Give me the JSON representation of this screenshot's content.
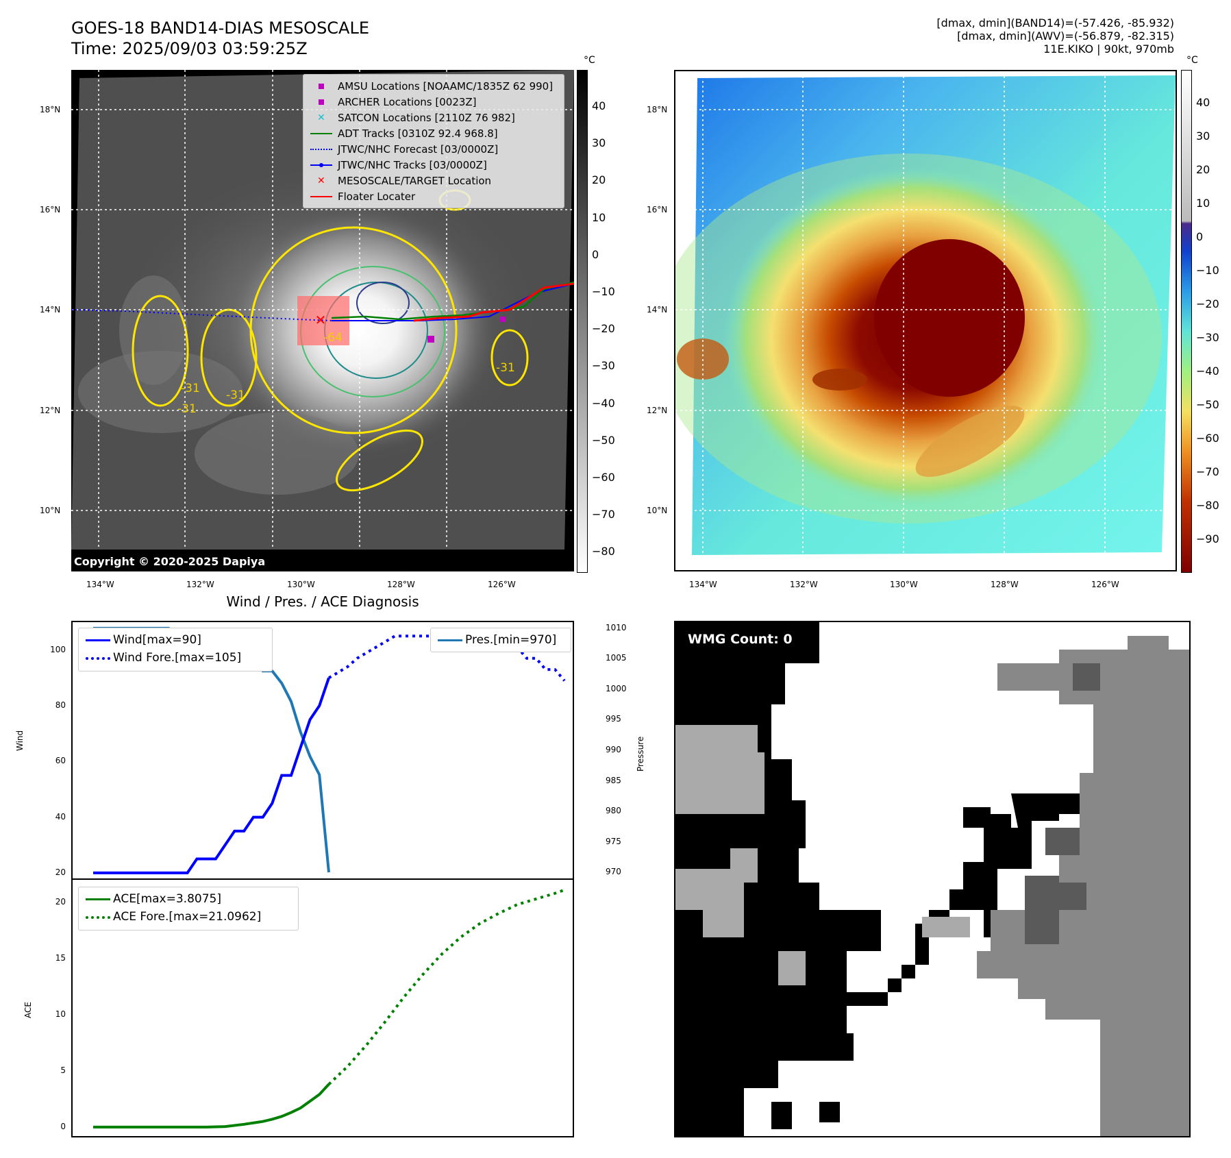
{
  "header": {
    "title_line1": "GOES-18 BAND14-DIAS MESOSCALE",
    "title_line2": "Time: 2025/09/03 03:59:25Z",
    "info_line1": "[dmax, dmin](BAND14)=(-57.426, -85.932)",
    "info_line2": "[dmax, dmin](AWV)=(-56.879, -82.315)",
    "info_line3": "11E.KIKO | 90kt, 970mb"
  },
  "map_axes": {
    "lon_labels": [
      "134°W",
      "132°W",
      "130°W",
      "128°W",
      "126°W"
    ],
    "lat_labels": [
      "18°N",
      "16°N",
      "14°N",
      "12°N",
      "10°N"
    ]
  },
  "ir_panel": {
    "legend": [
      {
        "label": "AMSU Locations [NOAAMC/1835Z 62 990]",
        "color": "#c000c0",
        "marker": "square"
      },
      {
        "label": "ARCHER Locations [0023Z]",
        "color": "#c000c0",
        "marker": "square"
      },
      {
        "label": "SATCON Locations [2110Z 76 982]",
        "color": "#17becf",
        "marker": "x"
      },
      {
        "label": "ADT Tracks [0310Z 92.4 968.8]",
        "color": "#008000",
        "marker": "line"
      },
      {
        "label": "JTWC/NHC Forecast [03/0000Z]",
        "color": "#0000ff",
        "marker": "dotted"
      },
      {
        "label": "JTWC/NHC Tracks [03/0000Z]",
        "color": "#0000ff",
        "marker": "line-dot"
      },
      {
        "label": "MESOSCALE/TARGET Location",
        "color": "#ff0000",
        "marker": "x"
      },
      {
        "label": "Floater Locater",
        "color": "#ff0000",
        "marker": "line"
      }
    ],
    "copyright": "Copyright © 2020-2025 Dapiya",
    "contour_labels": [
      "-31",
      "-31",
      "-31",
      "-64",
      "-31"
    ],
    "colorbar_unit": "°C",
    "colorbar_ticks": [
      "40",
      "30",
      "20",
      "10",
      "0",
      "−10",
      "−20",
      "−30",
      "−40",
      "−50",
      "−60",
      "−70",
      "−80"
    ]
  },
  "color_panel": {
    "colorbar_unit": "°C",
    "colorbar_ticks": [
      "40",
      "30",
      "20",
      "10",
      "0",
      "−10",
      "−20",
      "−30",
      "−40",
      "−50",
      "−60",
      "−70",
      "−80",
      "−90"
    ]
  },
  "wmg_panel": {
    "label": "WMG Count: 0"
  },
  "diag_panel": {
    "title": "Wind / Pres. / ACE Diagnosis",
    "wind_legend": [
      "Wind[max=90]",
      "Wind Fore.[max=105]"
    ],
    "pres_legend": [
      "Pres.[min=970]"
    ],
    "ace_legend": [
      "ACE[max=3.8075]",
      "ACE Fore.[max=21.0962]"
    ],
    "wind_ylabel": "Wind",
    "pres_ylabel": "Pressure",
    "ace_ylabel": "ACE",
    "wind_ticks": [
      "100",
      "80",
      "60",
      "40",
      "20"
    ],
    "pres_ticks": [
      "1010",
      "1005",
      "1000",
      "995",
      "990",
      "985",
      "980",
      "975",
      "970"
    ],
    "ace_ticks": [
      "20",
      "15",
      "10",
      "5",
      "0"
    ]
  },
  "chart_data": [
    {
      "type": "line",
      "title": "Wind / Pres. / ACE Diagnosis",
      "ylabel": "Wind",
      "ylim": [
        18,
        110
      ],
      "series": [
        {
          "name": "Wind[max=90]",
          "color": "#0000ff",
          "style": "solid",
          "x": [
            0,
            5,
            10,
            11,
            12,
            13,
            14,
            15,
            16,
            17,
            18,
            19,
            20,
            21,
            22,
            23,
            24,
            25
          ],
          "y": [
            20,
            20,
            20,
            25,
            25,
            25,
            30,
            35,
            35,
            40,
            40,
            45,
            55,
            55,
            65,
            75,
            80,
            90
          ]
        },
        {
          "name": "Wind Fore.[max=105]",
          "color": "#0000ff",
          "style": "dotted",
          "x": [
            25,
            26,
            27,
            28,
            29,
            30,
            31,
            32,
            33,
            34,
            35,
            36,
            37,
            38,
            39,
            40,
            41,
            42,
            43,
            44,
            45,
            46,
            47,
            48,
            49,
            50
          ],
          "y": [
            90,
            92,
            94,
            97,
            99,
            101,
            103,
            105,
            105,
            105,
            105,
            105,
            105,
            105,
            105,
            105,
            105,
            105,
            105,
            101,
            101,
            97,
            97,
            93,
            93,
            89
          ]
        }
      ]
    },
    {
      "type": "line",
      "ylabel": "Pressure",
      "ylim": [
        969,
        1011
      ],
      "series": [
        {
          "name": "Pres.[min=970]",
          "color": "#1f77b4",
          "style": "solid",
          "x": [
            0,
            3,
            6,
            8,
            9,
            10,
            11,
            12,
            13,
            14,
            15,
            16,
            17,
            18,
            19,
            20,
            21,
            22,
            23,
            24,
            25
          ],
          "y": [
            1010,
            1010,
            1010,
            1010,
            1009,
            1009,
            1009,
            1009,
            1009,
            1008,
            1007,
            1006,
            1006,
            1003,
            1003,
            1001,
            998,
            993,
            989,
            986,
            970
          ]
        }
      ]
    },
    {
      "type": "line",
      "ylabel": "ACE",
      "ylim": [
        -0.8,
        22
      ],
      "series": [
        {
          "name": "ACE[max=3.8075]",
          "color": "#008000",
          "style": "solid",
          "x": [
            0,
            4,
            8,
            12,
            14,
            16,
            18,
            19,
            20,
            21,
            22,
            23,
            24,
            25
          ],
          "y": [
            0,
            0,
            0,
            0,
            0.05,
            0.25,
            0.5,
            0.7,
            0.95,
            1.3,
            1.7,
            2.3,
            2.9,
            3.8075
          ]
        },
        {
          "name": "ACE Fore.[max=21.0962]",
          "color": "#008000",
          "style": "dotted",
          "x": [
            25,
            27,
            29,
            31,
            33,
            35,
            37,
            39,
            41,
            43,
            45,
            47,
            49,
            50
          ],
          "y": [
            3.8075,
            5.4,
            7.3,
            9.4,
            11.6,
            13.6,
            15.4,
            16.9,
            18.1,
            19.0,
            19.8,
            20.3,
            20.8,
            21.0962
          ]
        }
      ]
    }
  ]
}
